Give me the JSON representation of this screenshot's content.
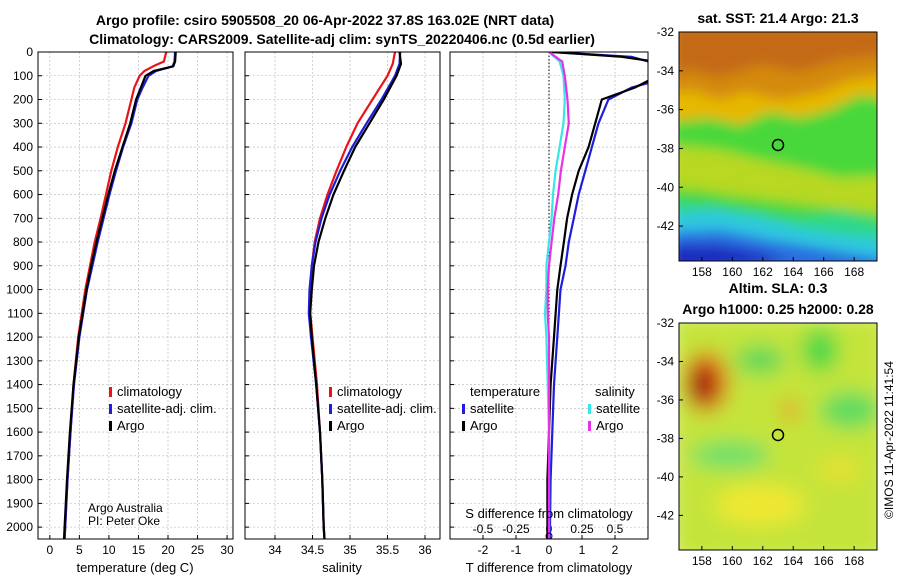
{
  "header": {
    "line1": "Argo profile: csiro 5905508_20 06-Apr-2022 37.8S 163.02E (NRT data)",
    "line2": "Climatology: CARS2009. Satellite-adj clim: synTS_20220406.nc (0.5d earlier)"
  },
  "credits": {
    "org": "Argo Australia",
    "pi": "PI: Peter Oke",
    "imos": "©IMOS 11-Apr-2022 11:41:54"
  },
  "colors": {
    "climatology": "#e8141a",
    "satellite": "#1d1ddb",
    "argo": "#000000",
    "satellite_s": "#38e6e6",
    "argo_s": "#e632e6",
    "grid": "#b4b4b4",
    "dots": "#000000"
  },
  "legend_temp": {
    "items": [
      {
        "label": "climatology",
        "color": "#e8141a"
      },
      {
        "label": "satellite-adj. clim.",
        "color": "#1d1ddb"
      },
      {
        "label": "Argo",
        "color": "#000000"
      }
    ]
  },
  "legend_sal": {
    "items": [
      {
        "label": "climatology",
        "color": "#e8141a"
      },
      {
        "label": "satellite-adj. clim.",
        "color": "#1d1ddb"
      },
      {
        "label": "Argo",
        "color": "#000000"
      }
    ]
  },
  "legend_diff": {
    "temp_title": "temperature",
    "sal_title": "salinity",
    "temp_items": [
      {
        "label": "satellite",
        "color": "#1d1ddb"
      },
      {
        "label": "Argo",
        "color": "#000000"
      }
    ],
    "sal_items": [
      {
        "label": "satellite",
        "color": "#38e6e6"
      },
      {
        "label": "Argo",
        "color": "#e632e6"
      }
    ]
  },
  "chart_data": [
    {
      "type": "line",
      "id": "temperature",
      "xlabel": "temperature (deg C)",
      "xlim": [
        -2,
        31
      ],
      "ylim": [
        2050,
        0
      ],
      "xticks": [
        0,
        5,
        10,
        15,
        20,
        25,
        30
      ],
      "yticks": [
        0,
        100,
        200,
        300,
        400,
        500,
        600,
        700,
        800,
        900,
        1000,
        1100,
        1200,
        1300,
        1400,
        1500,
        1600,
        1700,
        1800,
        1900,
        2000
      ],
      "series": [
        {
          "name": "climatology",
          "color": "#e8141a",
          "depth": [
            0,
            40,
            60,
            80,
            100,
            150,
            200,
            300,
            400,
            500,
            600,
            700,
            800,
            900,
            1000,
            1200,
            1400,
            1600,
            1800,
            2000,
            2050
          ],
          "values": [
            19.7,
            19.3,
            17.5,
            16.0,
            15.2,
            14.3,
            13.8,
            12.8,
            11.5,
            10.4,
            9.5,
            8.6,
            7.6,
            6.8,
            6.0,
            4.8,
            4.0,
            3.5,
            3.0,
            2.6,
            2.5
          ]
        },
        {
          "name": "satellite-adj. clim.",
          "color": "#1d1ddb",
          "depth": [
            0,
            40,
            60,
            80,
            100,
            150,
            200,
            300,
            400,
            500,
            600,
            700,
            800,
            900,
            1000,
            1200,
            1400,
            1600,
            1800,
            2000,
            2050
          ],
          "values": [
            21.2,
            21.1,
            20.8,
            18.0,
            16.7,
            15.7,
            14.8,
            13.8,
            12.4,
            11.2,
            10.1,
            9.1,
            8.1,
            7.2,
            6.3,
            5.0,
            4.1,
            3.5,
            3.0,
            2.6,
            2.5
          ]
        },
        {
          "name": "Argo",
          "color": "#000000",
          "depth": [
            0,
            40,
            60,
            80,
            100,
            150,
            200,
            300,
            400,
            500,
            600,
            700,
            800,
            900,
            1000,
            1200,
            1400,
            1600,
            1800,
            2000,
            2050
          ],
          "values": [
            21.3,
            21.2,
            20.9,
            17.6,
            16.2,
            15.4,
            14.6,
            13.6,
            12.3,
            11.0,
            9.9,
            8.9,
            7.9,
            7.0,
            6.2,
            4.9,
            4.0,
            3.4,
            2.9,
            2.5,
            2.4
          ]
        }
      ]
    },
    {
      "type": "line",
      "id": "salinity",
      "xlabel": "salinity",
      "xlim": [
        33.6,
        36.2
      ],
      "ylim": [
        2050,
        0
      ],
      "xticks": [
        34,
        34.5,
        35,
        35.5,
        36
      ],
      "series": [
        {
          "name": "climatology",
          "color": "#e8141a",
          "depth": [
            0,
            50,
            100,
            200,
            300,
            400,
            500,
            600,
            700,
            800,
            900,
            1000,
            1100,
            1200,
            1400,
            1600,
            1800,
            2000,
            2050
          ],
          "values": [
            35.6,
            35.57,
            35.5,
            35.3,
            35.1,
            34.95,
            34.82,
            34.7,
            34.6,
            34.53,
            34.49,
            34.47,
            34.47,
            34.5,
            34.56,
            34.6,
            34.63,
            34.65,
            34.66
          ]
        },
        {
          "name": "satellite-adj. clim.",
          "color": "#1d1ddb",
          "depth": [
            0,
            50,
            100,
            200,
            300,
            400,
            500,
            600,
            700,
            800,
            900,
            1000,
            1100,
            1200,
            1400,
            1600,
            1800,
            2000,
            2050
          ],
          "values": [
            35.67,
            35.66,
            35.6,
            35.42,
            35.22,
            35.03,
            34.87,
            34.73,
            34.62,
            34.54,
            34.49,
            34.46,
            34.45,
            34.48,
            34.55,
            34.6,
            34.63,
            34.65,
            34.66
          ]
        },
        {
          "name": "Argo",
          "color": "#000000",
          "depth": [
            0,
            50,
            100,
            200,
            300,
            400,
            500,
            600,
            700,
            800,
            900,
            1000,
            1100,
            1200,
            1400,
            1600,
            1800,
            2000,
            2050
          ],
          "values": [
            35.66,
            35.68,
            35.62,
            35.45,
            35.26,
            35.07,
            34.92,
            34.78,
            34.67,
            34.58,
            34.52,
            34.49,
            34.47,
            34.49,
            34.55,
            34.6,
            34.63,
            34.65,
            34.66
          ]
        }
      ]
    },
    {
      "type": "line",
      "id": "difference",
      "xlabel": "T difference from climatology",
      "xlabel_top": "S difference from climatology",
      "xlim": [
        -3,
        3
      ],
      "ylim": [
        2050,
        0
      ],
      "xticks": [
        -2,
        -1,
        0,
        1,
        2
      ],
      "xticks_s": [
        -0.5,
        -0.25,
        0,
        0.25,
        0.5
      ],
      "xticks_s_labels": [
        "-0.5",
        "-0.25",
        "0",
        "0.25",
        "0.5"
      ],
      "series": [
        {
          "name": "temperature satellite",
          "color": "#1d1ddb",
          "depth": [
            0,
            20,
            40,
            60,
            80,
            100,
            150,
            200,
            300,
            400,
            500,
            600,
            700,
            800,
            900,
            1000,
            1200,
            1400,
            1600,
            1800,
            2000,
            2050
          ],
          "values": [
            0.1,
            2.5,
            3.0,
            3.3,
            3.5,
            3.8,
            2.5,
            1.8,
            1.5,
            1.3,
            1.1,
            0.9,
            0.75,
            0.6,
            0.5,
            0.35,
            0.25,
            0.15,
            0.1,
            0.05,
            0.03,
            0.03
          ]
        },
        {
          "name": "temperature Argo",
          "color": "#000000",
          "depth": [
            0,
            20,
            40,
            60,
            80,
            100,
            150,
            200,
            300,
            400,
            500,
            600,
            700,
            800,
            900,
            1000,
            1200,
            1400,
            1600,
            1800,
            2000,
            2050
          ],
          "values": [
            0.1,
            2.2,
            3.2,
            3.6,
            3.8,
            3.3,
            2.6,
            1.6,
            1.4,
            1.2,
            0.9,
            0.7,
            0.55,
            0.45,
            0.35,
            0.25,
            0.15,
            0.05,
            0.0,
            -0.05,
            -0.05,
            -0.05
          ]
        },
        {
          "name": "salinity satellite",
          "color": "#38e6e6",
          "depth": [
            0,
            40,
            100,
            200,
            300,
            400,
            500,
            600,
            700,
            800,
            900,
            1000,
            1100,
            1200,
            1400,
            1600,
            1800,
            2000,
            2050
          ],
          "values": [
            0.0,
            0.08,
            0.11,
            0.12,
            0.11,
            0.08,
            0.05,
            0.03,
            0.02,
            0.0,
            -0.02,
            -0.02,
            -0.03,
            -0.02,
            -0.01,
            0.0,
            0.0,
            0.0,
            0.0
          ]
        },
        {
          "name": "salinity Argo",
          "color": "#e632e6",
          "depth": [
            0,
            40,
            100,
            200,
            300,
            400,
            500,
            600,
            700,
            800,
            900,
            1000,
            1100,
            1200,
            1400,
            1600,
            1800,
            2000,
            2050
          ],
          "values": [
            0.0,
            0.1,
            0.12,
            0.14,
            0.15,
            0.12,
            0.09,
            0.07,
            0.04,
            0.02,
            0.0,
            -0.01,
            -0.01,
            0.0,
            0.0,
            0.0,
            0.0,
            0.0,
            0.0
          ]
        }
      ]
    },
    {
      "type": "heatmap",
      "id": "sst_map",
      "title": "sat. SST: 21.4 Argo: 21.3",
      "xticks": [
        158,
        160,
        162,
        164,
        166,
        168
      ],
      "yticks": [
        -32,
        -34,
        -36,
        -38,
        -40,
        -42
      ],
      "xlim": [
        156.5,
        169.5
      ],
      "ylim": [
        -32,
        -43.8
      ],
      "marker": {
        "lon": 163.02,
        "lat": -37.8
      }
    },
    {
      "type": "heatmap",
      "id": "sla_map",
      "title": "Altim. SLA: 0.3",
      "subtitle": "Argo h1000: 0.25 h2000: 0.28",
      "xticks": [
        158,
        160,
        162,
        164,
        166,
        168
      ],
      "yticks": [
        -32,
        -34,
        -36,
        -38,
        -40,
        -42
      ],
      "xlim": [
        156.5,
        169.5
      ],
      "ylim": [
        -32,
        -43.8
      ],
      "marker": {
        "lon": 163.02,
        "lat": -37.8
      }
    }
  ]
}
